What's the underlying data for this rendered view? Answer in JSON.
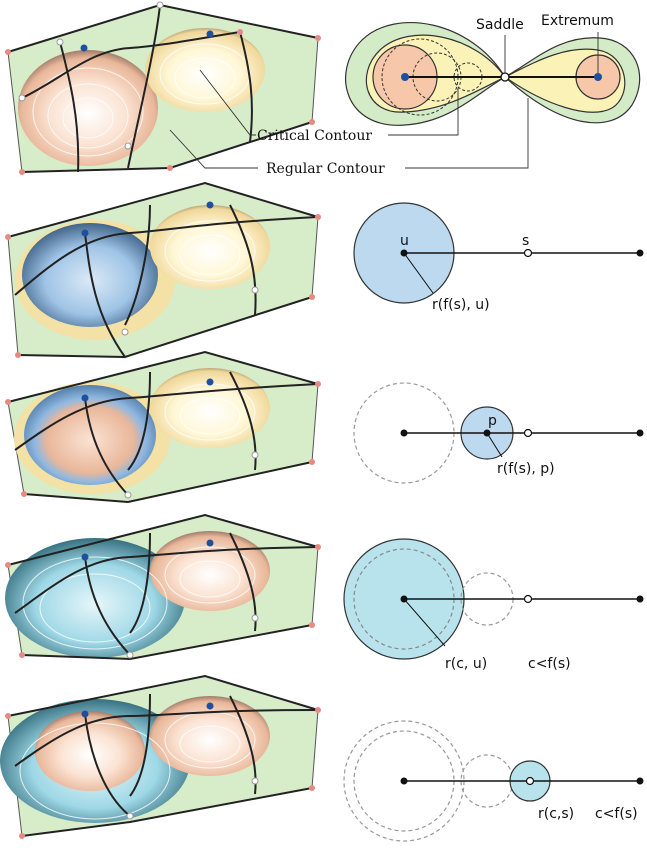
{
  "top": {
    "saddle_label": "Saddle",
    "extremum_label": "Extremum",
    "critical_label": "Critical Contour",
    "regular_label": "Regular Contour"
  },
  "rows": [
    {
      "center_label": "u",
      "saddle_label": "s",
      "radius_label": "r(f(s), u)"
    },
    {
      "center_label": "p",
      "radius_label": "r(f(s), p)"
    },
    {
      "radius_label": "r(c, u)",
      "condition_label": "c<f(s)"
    },
    {
      "radius_label": "r(c,s)",
      "condition_label": "c<f(s)"
    }
  ],
  "colors": {
    "green": "#cfe8c4",
    "peach": "#f6c7a8",
    "yellow": "#fbf2b8",
    "blue": "#bcd9ef",
    "cyan": "#b9e3ec",
    "node_blue": "#1f4fa0",
    "node_red": "#e88a84"
  }
}
